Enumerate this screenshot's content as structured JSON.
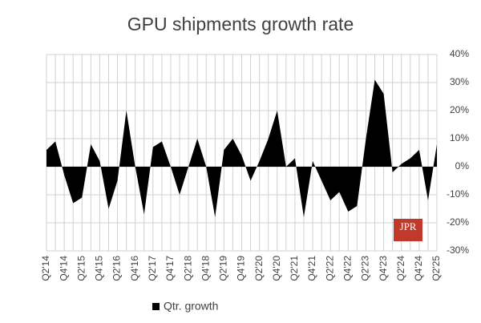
{
  "chart_data": {
    "type": "area",
    "title": "GPU shipments growth rate",
    "categories": [
      "Q2'14",
      null,
      "Q4'14",
      null,
      "Q2'15",
      null,
      "Q4'15",
      null,
      "Q2'16",
      null,
      "Q4'16",
      null,
      "Q2'17",
      null,
      "Q4'17",
      null,
      "Q2'18",
      null,
      "Q4'18",
      null,
      "Q2'19",
      null,
      "Q4'19",
      null,
      "Q2'20",
      null,
      "Q4'20",
      null,
      "Q2'21",
      null,
      "Q4'21",
      null,
      "Q2'22",
      null,
      "Q4'22",
      null,
      "Q2'23",
      null,
      "Q4'23",
      null,
      "Q2'24",
      null,
      "Q4'24",
      null,
      "Q2'25"
    ],
    "series": [
      {
        "name": "Qtr. growth",
        "color": "#000000",
        "values": [
          6,
          9,
          -3,
          -13,
          -11,
          8,
          2,
          -15,
          -5,
          20,
          0,
          -17,
          7,
          9,
          0,
          -10,
          0,
          10,
          0,
          -18,
          6,
          10,
          4,
          -5,
          2,
          10,
          20,
          0,
          3,
          -18,
          2,
          -5,
          -12,
          -9,
          -16,
          -14,
          10,
          31,
          26,
          -2,
          1,
          3,
          6,
          -12,
          8
        ]
      }
    ],
    "ylim": [
      -30,
      40
    ],
    "yticks": [
      {
        "value": -30,
        "label": "-30%"
      },
      {
        "value": -20,
        "label": "-20%"
      },
      {
        "value": -10,
        "label": "-10%"
      },
      {
        "value": 0,
        "label": "0%"
      },
      {
        "value": 10,
        "label": "10%"
      },
      {
        "value": 20,
        "label": "20%"
      },
      {
        "value": 30,
        "label": "30%"
      },
      {
        "value": 40,
        "label": "40%"
      }
    ],
    "grid": true,
    "legend": "bottom",
    "logo": "JPR"
  }
}
